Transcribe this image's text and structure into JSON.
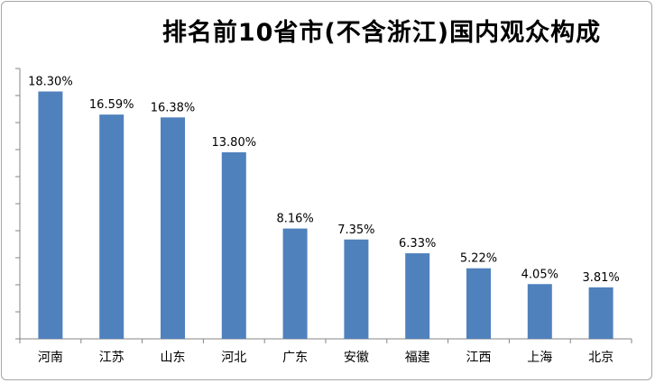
{
  "chart_data": {
    "type": "bar",
    "title": "排名前10省市(不含浙江)国内观众构成",
    "categories": [
      "河南",
      "江苏",
      "山东",
      "河北",
      "广东",
      "安徽",
      "福建",
      "江西",
      "上海",
      "北京"
    ],
    "values": [
      18.3,
      16.59,
      16.38,
      13.8,
      8.16,
      7.35,
      6.33,
      5.22,
      4.05,
      3.81
    ],
    "value_labels": [
      "18.30%",
      "16.59%",
      "16.38%",
      "13.80%",
      "8.16%",
      "7.35%",
      "6.33%",
      "5.22%",
      "4.05%",
      "3.81%"
    ],
    "xlabel": "",
    "ylabel": "",
    "ylim": [
      0,
      20
    ],
    "grid": false,
    "legend": "none",
    "colors": {
      "bar": "#4f81bd",
      "axis": "#868686"
    }
  }
}
